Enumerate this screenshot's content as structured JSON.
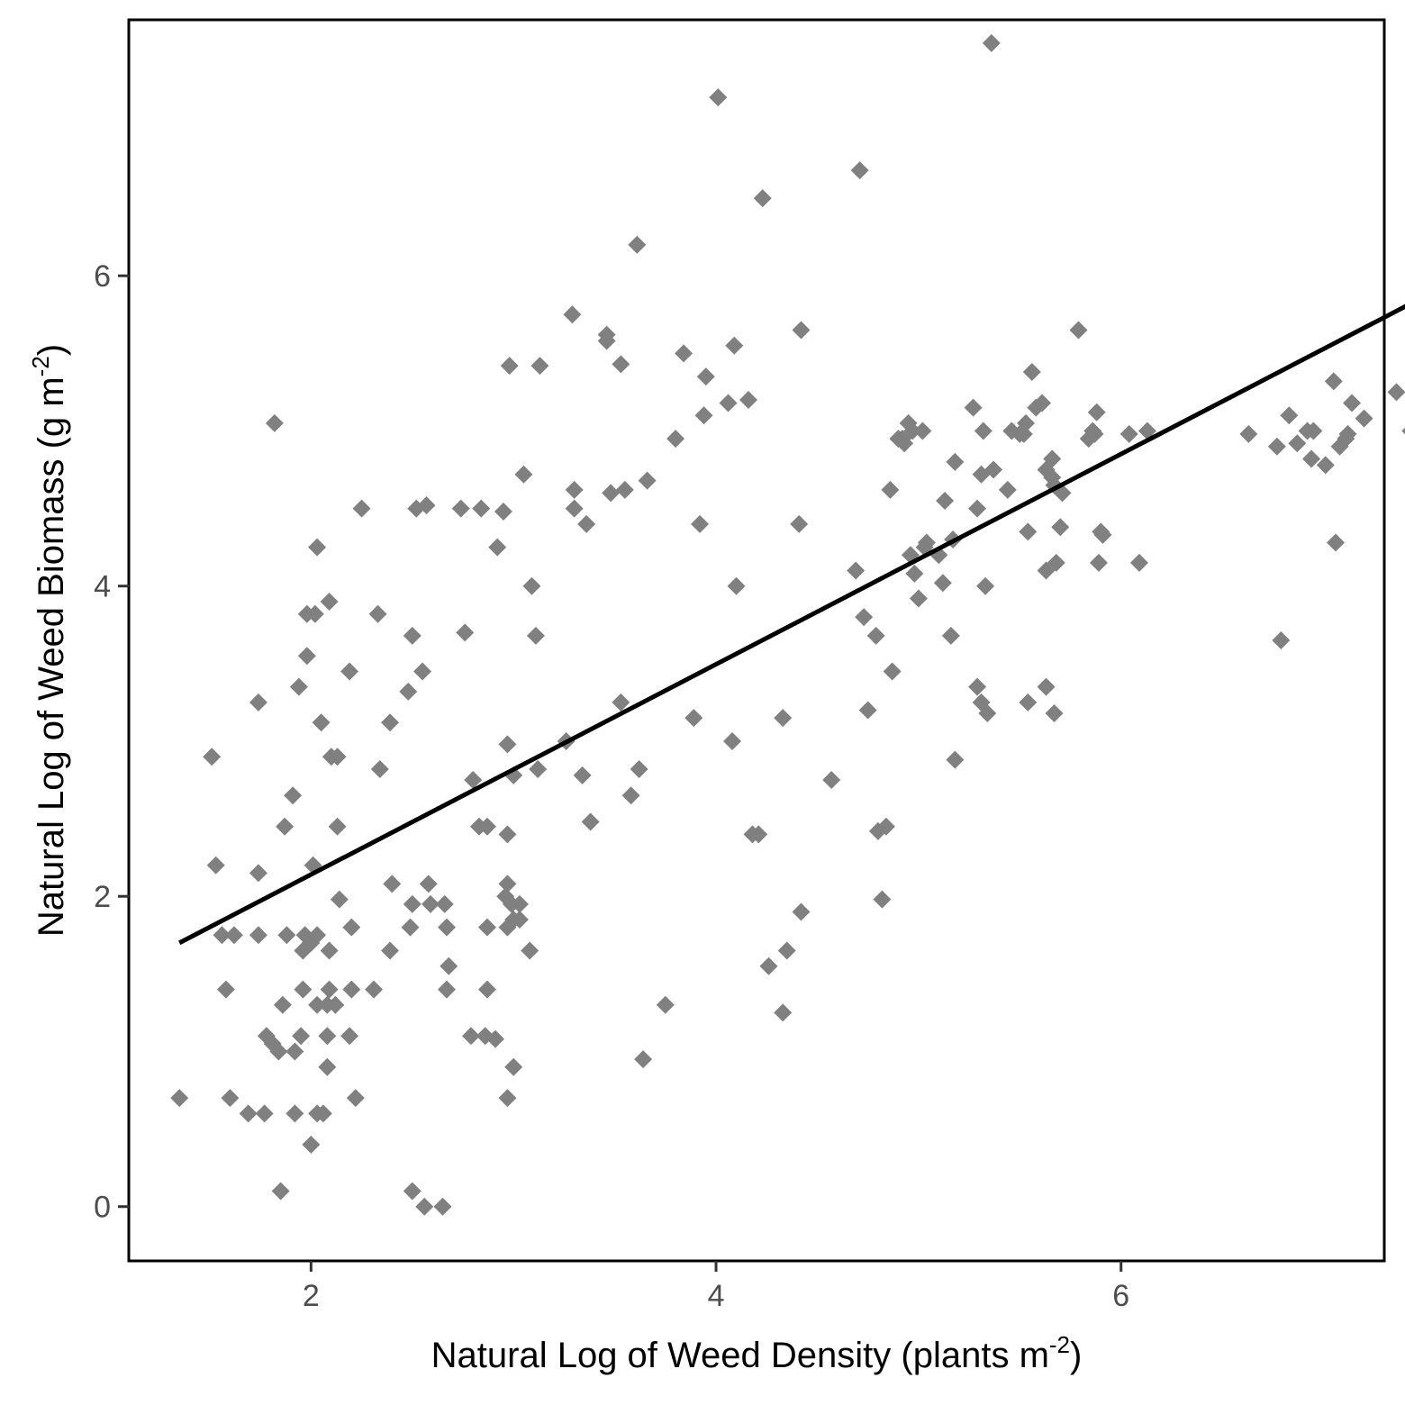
{
  "chart_data": {
    "type": "scatter",
    "title": "",
    "xlabel": "Natural Log of Weed Density (plants m",
    "xlabel_sup": "-2",
    "xlabel_close": ")",
    "ylabel": "Natural Log of Weed Biomass (g m",
    "ylabel_sup": "-2",
    "ylabel_close": ")",
    "xlim": [
      1.1,
      7.3
    ],
    "ylim": [
      -0.35,
      7.65
    ],
    "x_ticks": [
      2,
      4,
      6
    ],
    "y_ticks": [
      0,
      2,
      4,
      6
    ],
    "grid": false,
    "legend": "none",
    "colors": {
      "points": "#808080",
      "line": "#000000",
      "axis": "#000000",
      "ticks": "#333333"
    },
    "series": [
      {
        "kind": "points",
        "marker": "diamond",
        "points": [
          [
            1.35,
            0.7
          ],
          [
            1.51,
            2.9
          ],
          [
            1.53,
            2.2
          ],
          [
            1.56,
            1.75
          ],
          [
            1.58,
            1.4
          ],
          [
            1.6,
            0.7
          ],
          [
            1.62,
            1.75
          ],
          [
            1.69,
            0.6
          ],
          [
            1.74,
            1.75
          ],
          [
            1.74,
            3.25
          ],
          [
            1.74,
            2.15
          ],
          [
            1.77,
            0.6
          ],
          [
            1.78,
            1.1
          ],
          [
            1.81,
            1.05
          ],
          [
            1.82,
            5.05
          ],
          [
            1.84,
            1.0
          ],
          [
            1.85,
            0.1
          ],
          [
            1.86,
            1.3
          ],
          [
            1.87,
            2.45
          ],
          [
            1.88,
            1.75
          ],
          [
            1.91,
            2.65
          ],
          [
            1.92,
            1.0
          ],
          [
            1.92,
            0.6
          ],
          [
            1.94,
            3.35
          ],
          [
            1.95,
            1.1
          ],
          [
            1.96,
            1.4
          ],
          [
            1.96,
            1.65
          ],
          [
            1.97,
            1.75
          ],
          [
            1.98,
            3.55
          ],
          [
            1.98,
            3.82
          ],
          [
            2.0,
            1.7
          ],
          [
            2.0,
            0.4
          ],
          [
            2.01,
            2.2
          ],
          [
            2.02,
            3.82
          ],
          [
            2.03,
            0.6
          ],
          [
            2.03,
            1.75
          ],
          [
            2.03,
            1.3
          ],
          [
            2.03,
            4.25
          ],
          [
            2.05,
            3.12
          ],
          [
            2.06,
            0.6
          ],
          [
            2.08,
            0.9
          ],
          [
            2.08,
            1.3
          ],
          [
            2.08,
            1.1
          ],
          [
            2.09,
            1.4
          ],
          [
            2.09,
            1.65
          ],
          [
            2.09,
            3.9
          ],
          [
            2.1,
            2.9
          ],
          [
            2.12,
            1.3
          ],
          [
            2.13,
            2.45
          ],
          [
            2.13,
            2.9
          ],
          [
            2.14,
            1.98
          ],
          [
            2.19,
            3.45
          ],
          [
            2.19,
            1.1
          ],
          [
            2.2,
            1.8
          ],
          [
            2.2,
            1.4
          ],
          [
            2.22,
            0.7
          ],
          [
            2.25,
            4.5
          ],
          [
            2.31,
            1.4
          ],
          [
            2.33,
            3.82
          ],
          [
            2.34,
            2.82
          ],
          [
            2.39,
            1.65
          ],
          [
            2.39,
            3.12
          ],
          [
            2.4,
            2.08
          ],
          [
            2.48,
            3.32
          ],
          [
            2.49,
            1.8
          ],
          [
            2.5,
            0.1
          ],
          [
            2.5,
            1.95
          ],
          [
            2.5,
            3.68
          ],
          [
            2.52,
            4.5
          ],
          [
            2.55,
            3.45
          ],
          [
            2.56,
            0.0
          ],
          [
            2.57,
            4.52
          ],
          [
            2.58,
            2.08
          ],
          [
            2.59,
            1.95
          ],
          [
            2.65,
            0.0
          ],
          [
            2.66,
            1.95
          ],
          [
            2.67,
            1.8
          ],
          [
            2.67,
            1.4
          ],
          [
            2.68,
            1.55
          ],
          [
            2.74,
            4.5
          ],
          [
            2.76,
            3.7
          ],
          [
            2.79,
            1.1
          ],
          [
            2.8,
            2.75
          ],
          [
            2.83,
            2.45
          ],
          [
            2.84,
            4.5
          ],
          [
            2.86,
            1.1
          ],
          [
            2.87,
            1.8
          ],
          [
            2.87,
            1.4
          ],
          [
            2.87,
            2.45
          ],
          [
            2.91,
            1.08
          ],
          [
            2.92,
            4.25
          ],
          [
            2.95,
            4.48
          ],
          [
            2.96,
            2.0
          ],
          [
            2.97,
            0.7
          ],
          [
            2.97,
            1.8
          ],
          [
            2.97,
            2.08
          ],
          [
            2.97,
            2.98
          ],
          [
            2.97,
            2.4
          ],
          [
            2.98,
            5.42
          ],
          [
            2.99,
            1.95
          ],
          [
            3.0,
            2.78
          ],
          [
            3.0,
            1.85
          ],
          [
            3.0,
            0.9
          ],
          [
            3.03,
            1.95
          ],
          [
            3.03,
            1.85
          ],
          [
            3.05,
            4.72
          ],
          [
            3.08,
            1.65
          ],
          [
            3.09,
            4.0
          ],
          [
            3.11,
            3.68
          ],
          [
            3.12,
            2.82
          ],
          [
            3.13,
            5.42
          ],
          [
            3.26,
            3.0
          ],
          [
            3.29,
            5.75
          ],
          [
            3.3,
            4.62
          ],
          [
            3.3,
            4.5
          ],
          [
            3.34,
            2.78
          ],
          [
            3.36,
            4.4
          ],
          [
            3.38,
            2.48
          ],
          [
            3.46,
            5.62
          ],
          [
            3.46,
            5.58
          ],
          [
            3.48,
            4.6
          ],
          [
            3.53,
            5.43
          ],
          [
            3.53,
            3.25
          ],
          [
            3.55,
            4.62
          ],
          [
            3.58,
            2.65
          ],
          [
            3.61,
            6.2
          ],
          [
            3.62,
            2.82
          ],
          [
            3.64,
            0.95
          ],
          [
            3.66,
            4.68
          ],
          [
            3.75,
            1.3
          ],
          [
            3.8,
            4.95
          ],
          [
            3.84,
            5.5
          ],
          [
            3.89,
            3.15
          ],
          [
            3.92,
            4.4
          ],
          [
            3.94,
            5.1
          ],
          [
            3.95,
            5.35
          ],
          [
            4.01,
            7.15
          ],
          [
            4.06,
            5.18
          ],
          [
            4.08,
            3.0
          ],
          [
            4.09,
            5.55
          ],
          [
            4.1,
            4.0
          ],
          [
            4.16,
            5.2
          ],
          [
            4.18,
            2.4
          ],
          [
            4.21,
            2.4
          ],
          [
            4.23,
            6.5
          ],
          [
            4.26,
            1.55
          ],
          [
            4.33,
            1.25
          ],
          [
            4.33,
            3.15
          ],
          [
            4.35,
            1.65
          ],
          [
            4.41,
            4.4
          ],
          [
            4.42,
            1.9
          ],
          [
            4.42,
            5.65
          ],
          [
            4.57,
            2.75
          ],
          [
            4.69,
            4.1
          ],
          [
            4.71,
            6.68
          ],
          [
            4.73,
            3.8
          ],
          [
            4.75,
            3.2
          ],
          [
            4.79,
            3.68
          ],
          [
            4.8,
            2.42
          ],
          [
            4.82,
            1.98
          ],
          [
            4.84,
            2.45
          ],
          [
            4.86,
            4.62
          ],
          [
            4.87,
            3.45
          ],
          [
            4.9,
            4.95
          ],
          [
            4.92,
            4.95
          ],
          [
            4.93,
            4.92
          ],
          [
            4.95,
            5.05
          ],
          [
            4.96,
            4.2
          ],
          [
            4.97,
            5.0
          ],
          [
            4.98,
            4.08
          ],
          [
            5.0,
            3.92
          ],
          [
            5.02,
            5.0
          ],
          [
            5.03,
            4.25
          ],
          [
            5.04,
            4.28
          ],
          [
            5.1,
            4.2
          ],
          [
            5.12,
            4.02
          ],
          [
            5.13,
            4.55
          ],
          [
            5.16,
            3.68
          ],
          [
            5.17,
            4.3
          ],
          [
            5.18,
            4.8
          ],
          [
            5.18,
            2.88
          ],
          [
            5.27,
            5.15
          ],
          [
            5.29,
            4.5
          ],
          [
            5.29,
            3.35
          ],
          [
            5.31,
            3.25
          ],
          [
            5.31,
            4.72
          ],
          [
            5.32,
            5.0
          ],
          [
            5.33,
            4.0
          ],
          [
            5.34,
            3.18
          ],
          [
            5.36,
            7.5
          ],
          [
            5.37,
            4.75
          ],
          [
            5.44,
            4.62
          ],
          [
            5.46,
            5.0
          ],
          [
            5.5,
            4.98
          ],
          [
            5.52,
            4.98
          ],
          [
            5.53,
            5.05
          ],
          [
            5.54,
            4.35
          ],
          [
            5.54,
            3.25
          ],
          [
            5.56,
            5.38
          ],
          [
            5.58,
            5.15
          ],
          [
            5.61,
            5.18
          ],
          [
            5.63,
            4.75
          ],
          [
            5.63,
            4.1
          ],
          [
            5.63,
            3.35
          ],
          [
            5.66,
            4.7
          ],
          [
            5.66,
            4.82
          ],
          [
            5.67,
            4.65
          ],
          [
            5.67,
            3.18
          ],
          [
            5.68,
            4.15
          ],
          [
            5.7,
            4.38
          ],
          [
            5.71,
            4.6
          ],
          [
            5.79,
            5.65
          ],
          [
            5.84,
            4.95
          ],
          [
            5.86,
            5.0
          ],
          [
            5.87,
            4.98
          ],
          [
            5.88,
            5.12
          ],
          [
            5.89,
            4.15
          ],
          [
            5.9,
            4.35
          ],
          [
            5.91,
            4.33
          ],
          [
            6.04,
            4.98
          ],
          [
            6.09,
            4.15
          ],
          [
            6.13,
            5.0
          ],
          [
            6.63,
            4.98
          ],
          [
            6.77,
            4.9
          ],
          [
            6.79,
            3.65
          ],
          [
            6.83,
            5.1
          ],
          [
            6.87,
            4.92
          ],
          [
            6.92,
            5.0
          ],
          [
            6.94,
            4.82
          ],
          [
            6.95,
            5.0
          ],
          [
            7.01,
            4.78
          ],
          [
            7.05,
            5.32
          ],
          [
            7.06,
            4.28
          ],
          [
            7.08,
            4.9
          ],
          [
            7.11,
            4.95
          ],
          [
            7.12,
            4.98
          ],
          [
            7.14,
            5.18
          ],
          [
            7.2,
            5.08
          ],
          [
            7.36,
            5.25
          ],
          [
            7.43,
            5.0
          ]
        ]
      },
      {
        "kind": "regression-line",
        "x": [
          1.35,
          7.43
        ],
        "y": [
          1.7,
          5.82
        ]
      }
    ]
  }
}
